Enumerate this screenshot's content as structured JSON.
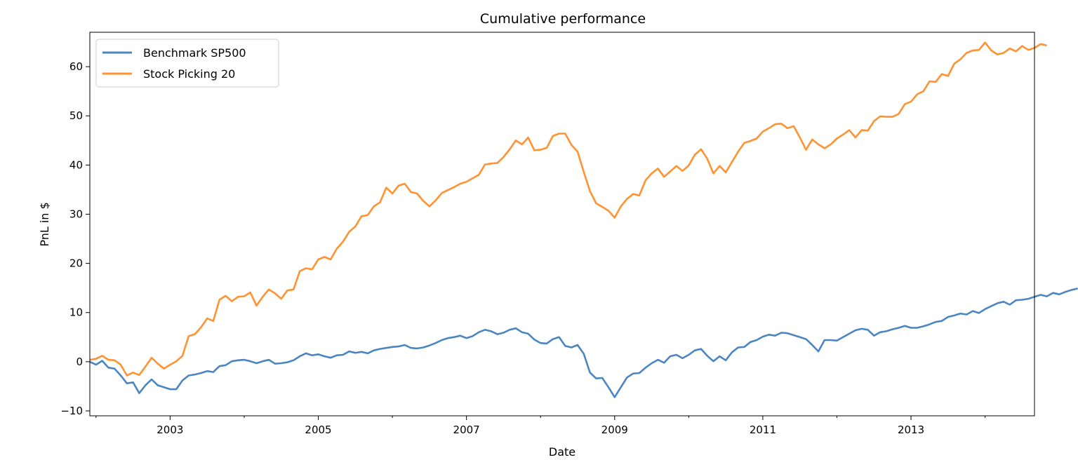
{
  "chart_data": {
    "type": "line",
    "title": "Cumulative performance",
    "xlabel": "Date",
    "ylabel": "PnL in $",
    "xlim": [
      "2001-12",
      "2014-09"
    ],
    "ylim": [
      -11,
      67
    ],
    "xticks": [
      "2003",
      "2005",
      "2007",
      "2009",
      "2011",
      "2013"
    ],
    "yticks": [
      -10,
      0,
      10,
      20,
      30,
      40,
      50,
      60
    ],
    "grid": false,
    "legend": "top-left",
    "x_frequency": "monthly",
    "x_start": "2001-12",
    "series": [
      {
        "name": "Benchmark SP500",
        "color": "#4c86c1",
        "values": [
          0.0,
          -0.6,
          0.2,
          -1.2,
          -1.4,
          -2.8,
          -4.4,
          -4.2,
          -6.4,
          -4.8,
          -3.6,
          -4.8,
          -5.2,
          -5.6,
          -5.6,
          -3.8,
          -2.8,
          -2.6,
          -2.3,
          -1.9,
          -2.1,
          -0.9,
          -0.7,
          0.1,
          0.3,
          0.4,
          0.1,
          -0.3,
          0.1,
          0.4,
          -0.4,
          -0.3,
          -0.1,
          0.3,
          1.1,
          1.7,
          1.3,
          1.5,
          1.1,
          0.8,
          1.3,
          1.4,
          2.1,
          1.8,
          2.0,
          1.7,
          2.3,
          2.6,
          2.8,
          3.0,
          3.1,
          3.4,
          2.8,
          2.7,
          2.9,
          3.3,
          3.8,
          4.4,
          4.8,
          5.0,
          5.3,
          4.8,
          5.2,
          6.0,
          6.5,
          6.2,
          5.6,
          5.9,
          6.5,
          6.8,
          6.0,
          5.7,
          4.5,
          3.8,
          3.7,
          4.6,
          5.0,
          3.2,
          2.9,
          3.4,
          1.6,
          -2.2,
          -3.4,
          -3.3,
          -5.2,
          -7.2,
          -5.2,
          -3.2,
          -2.4,
          -2.3,
          -1.2,
          -0.3,
          0.4,
          -0.2,
          1.1,
          1.4,
          0.7,
          1.4,
          2.3,
          2.6,
          1.2,
          0.1,
          1.1,
          0.3,
          1.9,
          2.9,
          3.0,
          4.0,
          4.4,
          5.1,
          5.5,
          5.3,
          5.9,
          5.8,
          5.4,
          5.0,
          4.6,
          3.4,
          2.1,
          4.4,
          4.4,
          4.3,
          5.0,
          5.7,
          6.4,
          6.7,
          6.5,
          5.3,
          6.0,
          6.2,
          6.6,
          6.9,
          7.3,
          6.9,
          6.9,
          7.2,
          7.6,
          8.1,
          8.3,
          9.1,
          9.4,
          9.8,
          9.6,
          10.3,
          9.9,
          10.7,
          11.3,
          11.9,
          12.2,
          11.6,
          12.5,
          12.6,
          12.8,
          13.2,
          13.6,
          13.3,
          14.0,
          13.7,
          14.2,
          14.6,
          14.9
        ]
      },
      {
        "name": "Stock Picking 20",
        "color": "#ff9333",
        "values": [
          0.4,
          0.6,
          1.2,
          0.4,
          0.3,
          -0.6,
          -2.8,
          -2.2,
          -2.7,
          -1.0,
          0.8,
          -0.4,
          -1.4,
          -0.6,
          0.1,
          1.2,
          5.2,
          5.6,
          7.0,
          8.8,
          8.3,
          12.6,
          13.4,
          12.3,
          13.2,
          13.3,
          14.1,
          11.4,
          13.2,
          14.7,
          13.9,
          12.8,
          14.5,
          14.7,
          18.4,
          19.0,
          18.8,
          20.8,
          21.3,
          20.8,
          23.0,
          24.4,
          26.4,
          27.5,
          29.6,
          29.8,
          31.6,
          32.4,
          35.4,
          34.2,
          35.8,
          36.2,
          34.5,
          34.2,
          32.7,
          31.6,
          32.8,
          34.3,
          34.9,
          35.5,
          36.2,
          36.6,
          37.3,
          38.0,
          40.1,
          40.3,
          40.4,
          41.6,
          43.2,
          45.0,
          44.2,
          45.6,
          43.0,
          43.1,
          43.5,
          45.9,
          46.4,
          46.4,
          44.1,
          42.7,
          38.6,
          34.7,
          32.2,
          31.5,
          30.7,
          29.3,
          31.6,
          33.1,
          34.1,
          33.8,
          36.9,
          38.3,
          39.3,
          37.6,
          38.7,
          39.8,
          38.8,
          39.9,
          42.1,
          43.2,
          41.3,
          38.3,
          39.8,
          38.5,
          40.6,
          42.7,
          44.5,
          44.9,
          45.4,
          46.8,
          47.5,
          48.3,
          48.4,
          47.5,
          47.9,
          45.6,
          43.1,
          45.2,
          44.2,
          43.4,
          44.2,
          45.4,
          46.2,
          47.1,
          45.6,
          47.1,
          47.0,
          48.9,
          49.9,
          49.8,
          49.8,
          50.4,
          52.4,
          52.9,
          54.4,
          55.0,
          57.0,
          56.9,
          58.5,
          58.1,
          60.6,
          61.5,
          62.8,
          63.3,
          63.4,
          64.9,
          63.3,
          62.5,
          62.8,
          63.7,
          63.1,
          64.2,
          63.4,
          63.8,
          64.6,
          64.3
        ]
      }
    ]
  }
}
